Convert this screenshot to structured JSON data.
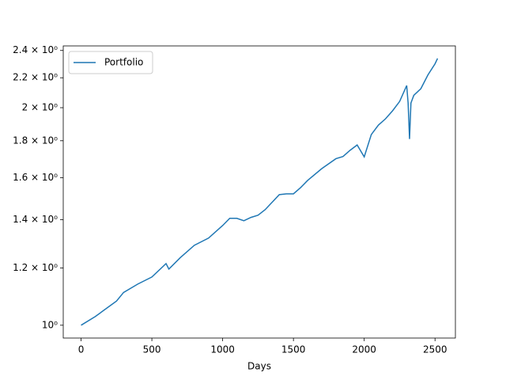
{
  "chart_data": {
    "type": "line",
    "x_label": "Days",
    "x": [
      0,
      100,
      250,
      300,
      400,
      500,
      600,
      620,
      700,
      800,
      900,
      1000,
      1050,
      1100,
      1150,
      1200,
      1250,
      1300,
      1350,
      1400,
      1450,
      1500,
      1550,
      1600,
      1700,
      1800,
      1850,
      1900,
      1950,
      2000,
      2050,
      2100,
      2150,
      2200,
      2250,
      2300,
      2310,
      2320,
      2330,
      2350,
      2400,
      2450,
      2500,
      2518
    ],
    "series": [
      {
        "name": "Portfolio",
        "color": "#1f77b4",
        "values": [
          1.0,
          1.028,
          1.08,
          1.11,
          1.14,
          1.166,
          1.217,
          1.196,
          1.24,
          1.29,
          1.32,
          1.374,
          1.406,
          1.406,
          1.395,
          1.41,
          1.42,
          1.445,
          1.48,
          1.516,
          1.52,
          1.52,
          1.55,
          1.586,
          1.647,
          1.7,
          1.712,
          1.746,
          1.776,
          1.71,
          1.836,
          1.892,
          1.93,
          1.98,
          2.04,
          2.146,
          2.03,
          1.81,
          2.03,
          2.08,
          2.125,
          2.22,
          2.3,
          2.34
        ]
      }
    ],
    "xlim": [
      -126,
      2644
    ],
    "xticks": [
      0,
      500,
      1000,
      1500,
      2000,
      2500
    ],
    "ylim": [
      0.96,
      2.435
    ],
    "y_scale": "log",
    "yticks": [
      {
        "value": 1.0,
        "label": "10⁰"
      },
      {
        "value": 1.2,
        "label": "1.2 × 10⁰"
      },
      {
        "value": 1.4,
        "label": "1.4 × 10⁰"
      },
      {
        "value": 1.6,
        "label": "1.6 × 10⁰"
      },
      {
        "value": 1.8,
        "label": "1.8 × 10⁰"
      },
      {
        "value": 2.0,
        "label": "2 × 10⁰"
      },
      {
        "value": 2.2,
        "label": "2.2 × 10⁰"
      },
      {
        "value": 2.4,
        "label": "2.4 × 10⁰"
      }
    ],
    "legend": "upper left",
    "grid": false
  }
}
